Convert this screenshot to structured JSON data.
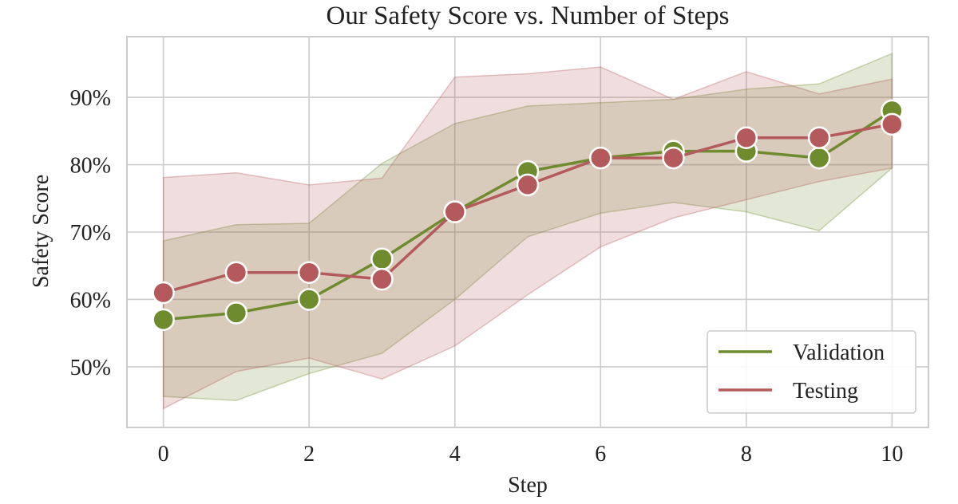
{
  "chart_data": {
    "type": "line",
    "title": "Our Safety Score vs. Number of Steps",
    "xlabel": "Step",
    "ylabel": "Safety Score",
    "x": [
      0,
      1,
      2,
      3,
      4,
      5,
      6,
      7,
      8,
      9,
      10
    ],
    "xlim": [
      -0.5,
      10.5
    ],
    "ylim": [
      41,
      99
    ],
    "x_ticks": [
      0,
      2,
      4,
      6,
      8,
      10
    ],
    "x_tick_labels": [
      "0",
      "2",
      "4",
      "6",
      "8",
      "10"
    ],
    "y_ticks": [
      50,
      60,
      70,
      80,
      90
    ],
    "y_tick_labels": [
      "50%",
      "60%",
      "70%",
      "80%",
      "90%"
    ],
    "grid": true,
    "legend_position": "bottom-right",
    "series": [
      {
        "name": "Validation",
        "color": "#6e8b2e",
        "values": [
          57,
          58,
          60,
          66,
          73,
          79,
          81,
          82,
          82,
          81,
          88
        ],
        "band_upper": [
          68.7,
          71.1,
          71.3,
          80.2,
          86.1,
          88.7,
          89.2,
          89.7,
          91.2,
          92,
          96.5
        ],
        "band_lower": [
          45.6,
          45,
          49,
          52,
          60,
          69.3,
          72.8,
          74.4,
          73,
          70.2,
          79.5
        ]
      },
      {
        "name": "Testing",
        "color": "#b55a5c",
        "values": [
          61,
          64,
          64,
          63,
          73,
          77,
          81,
          81,
          84,
          84,
          86
        ],
        "band_upper": [
          78.1,
          78.8,
          77,
          78,
          93,
          93.5,
          94.5,
          89.7,
          93.8,
          90.5,
          92.7
        ],
        "band_lower": [
          43.8,
          49.3,
          51.3,
          48.2,
          53.1,
          60.7,
          67.8,
          72.1,
          74.8,
          77.5,
          79.5
        ]
      }
    ]
  }
}
